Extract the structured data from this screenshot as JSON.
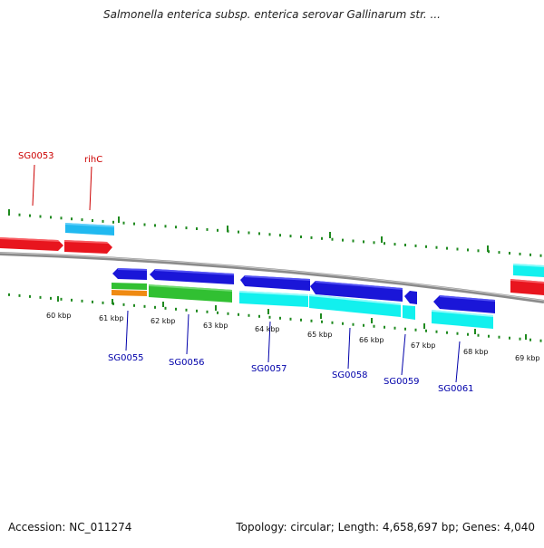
{
  "title": "Salmonella enterica subsp. enterica serovar Gallinarum str. ...",
  "footer": {
    "accession": "Accession: NC_011274",
    "topology": "Topology: circular; Length: 4,658,697 bp; Genes: 4,040"
  },
  "colors": {
    "red_gene": "#e8151e",
    "sky_gene": "#21b9f0",
    "blue_gene": "#1a16d8",
    "cyan_gene": "#12f0ee",
    "green_gene": "#31c032",
    "orange_gene": "#ef8a12",
    "backbone": "#8a8a8a",
    "ticks": "#1f8a1f",
    "label_red": "#cc0000",
    "label_blue": "#0000aa"
  },
  "ticks": [
    {
      "label": "60 kbp"
    },
    {
      "label": "61 kbp"
    },
    {
      "label": "62 kbp"
    },
    {
      "label": "63 kbp"
    },
    {
      "label": "64 kbp"
    },
    {
      "label": "65 kbp"
    },
    {
      "label": "66 kbp"
    },
    {
      "label": "67 kbp"
    },
    {
      "label": "68 kbp"
    },
    {
      "label": "69 kbp"
    }
  ],
  "gene_labels": [
    {
      "text": "SG0053"
    },
    {
      "text": "rihC"
    },
    {
      "text": "SG0055"
    },
    {
      "text": "SG0056"
    },
    {
      "text": "SG0057"
    },
    {
      "text": "SG0058"
    },
    {
      "text": "SG0059"
    },
    {
      "text": "SG0061"
    }
  ]
}
